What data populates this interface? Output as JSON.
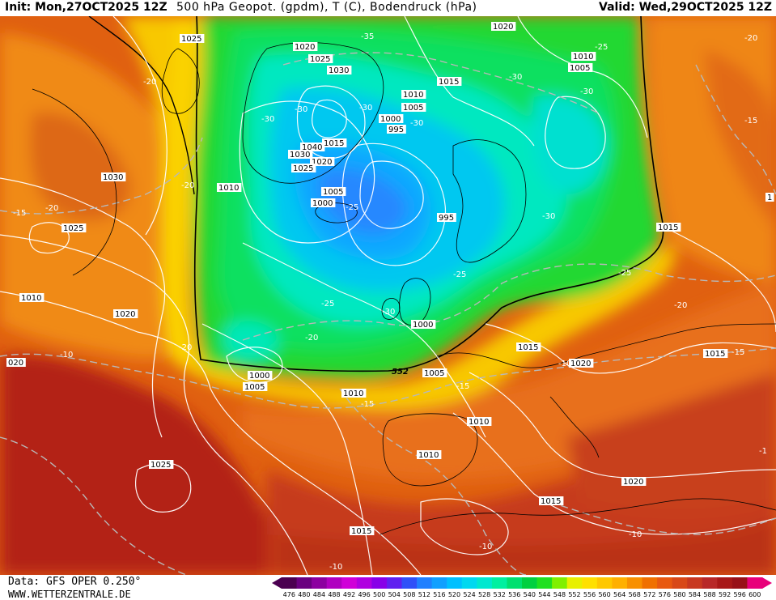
{
  "header": {
    "init": "Init: Mon,27OCT2025 12Z",
    "title": "500 hPa Geopot. (gpdm), T (C), Bodendruck (hPa)",
    "valid": "Valid: Wed,29OCT2025 12Z"
  },
  "footer": {
    "data_source": "Data: GFS OPER 0.250°",
    "website": "WWW.WETTERZENTRALE.DE"
  },
  "colorbar": {
    "ticks": [
      "476",
      "480",
      "484",
      "488",
      "492",
      "496",
      "500",
      "504",
      "508",
      "512",
      "516",
      "520",
      "524",
      "528",
      "532",
      "536",
      "540",
      "544",
      "548",
      "552",
      "556",
      "560",
      "564",
      "568",
      "572",
      "576",
      "580",
      "584",
      "588",
      "592",
      "596",
      "600"
    ],
    "colors": [
      "#4b0050",
      "#6a0080",
      "#8c00a0",
      "#b000c0",
      "#d000d8",
      "#b000e0",
      "#8800e8",
      "#6020f0",
      "#3050f8",
      "#2080ff",
      "#10a0ff",
      "#00c0ff",
      "#00d8f0",
      "#00e8d0",
      "#00f0a0",
      "#00e070",
      "#00d040",
      "#20e020",
      "#80f000",
      "#e8f000",
      "#ffe000",
      "#ffc800",
      "#ffb000",
      "#f89000",
      "#f07000",
      "#e85810",
      "#d84818",
      "#c83820",
      "#b82828",
      "#a81818",
      "#981018",
      "#e8007a"
    ]
  },
  "map": {
    "contour_value_552": "552",
    "pressure_labels": [
      {
        "text": "1025",
        "id": "p1025-greenland-w"
      },
      {
        "text": "1020",
        "id": "p1020-greenland"
      },
      {
        "text": "1025",
        "id": "p1025-greenland-n"
      },
      {
        "text": "1030",
        "id": "p1030-greenland"
      },
      {
        "text": "1020",
        "id": "p1020-north"
      },
      {
        "text": "1010",
        "id": "p1010-ne"
      },
      {
        "text": "1005",
        "id": "p1005-ne"
      },
      {
        "text": "1015",
        "id": "p1015-n"
      },
      {
        "text": "1010",
        "id": "p1010-n"
      },
      {
        "text": "1005",
        "id": "p1005-n"
      },
      {
        "text": "1000",
        "id": "p1000-n"
      },
      {
        "text": "995",
        "id": "p995-n"
      },
      {
        "text": "1040",
        "id": "p1040"
      },
      {
        "text": "1015",
        "id": "p1015-gl"
      },
      {
        "text": "1030",
        "id": "p1030-gl"
      },
      {
        "text": "1020",
        "id": "p1020-gl"
      },
      {
        "text": "1025",
        "id": "p1025-gl"
      },
      {
        "text": "1030",
        "id": "p1030-canada"
      },
      {
        "text": "1010",
        "id": "p1010-atl-n"
      },
      {
        "text": "1005",
        "id": "p1005-iceland"
      },
      {
        "text": "1000",
        "id": "p1000-iceland"
      },
      {
        "text": "995",
        "id": "p995-scand"
      },
      {
        "text": "1025",
        "id": "p1025-newfoundland"
      },
      {
        "text": "1010",
        "id": "p1010-w"
      },
      {
        "text": "1020",
        "id": "p1020-atl"
      },
      {
        "text": "1000",
        "id": "p1000-uk"
      },
      {
        "text": "1000",
        "id": "p1000-atl"
      },
      {
        "text": "1005",
        "id": "p1005-atl"
      },
      {
        "text": "1005",
        "id": "p1005-channel"
      },
      {
        "text": "1010",
        "id": "p1010-biscay"
      },
      {
        "text": "1010",
        "id": "p1010-france"
      },
      {
        "text": "1010",
        "id": "p1010-iberia"
      },
      {
        "text": "1015",
        "id": "p1015-iberia"
      },
      {
        "text": "1015",
        "id": "p1015-med"
      },
      {
        "text": "1020",
        "id": "p1020-balkans"
      },
      {
        "text": "1015",
        "id": "p1015-central"
      },
      {
        "text": "1020",
        "id": "p1020-east"
      },
      {
        "text": "1015",
        "id": "p1015-russia"
      },
      {
        "text": "1015",
        "id": "p1015-east"
      },
      {
        "text": "1025",
        "id": "p1025-azores"
      },
      {
        "text": "020",
        "id": "p020-west-edge"
      },
      {
        "text": "1",
        "id": "p1-edge"
      }
    ],
    "temp_labels": [
      {
        "text": "-35",
        "id": "t-35"
      },
      {
        "text": "-25",
        "id": "t-25-n"
      },
      {
        "text": "-30",
        "id": "t-30-n"
      },
      {
        "text": "-30",
        "id": "t-30-ne"
      },
      {
        "text": "-30",
        "id": "t-30-gl"
      },
      {
        "text": "-30",
        "id": "t-30-gl2"
      },
      {
        "text": "-30",
        "id": "t-30-gl3"
      },
      {
        "text": "-30",
        "id": "t-30-scand"
      },
      {
        "text": "-30",
        "id": "t-30-russ"
      },
      {
        "text": "-25",
        "id": "t-25-ice"
      },
      {
        "text": "-25",
        "id": "t-25-uk"
      },
      {
        "text": "-25",
        "id": "t-25-atl"
      },
      {
        "text": "-25",
        "id": "t-25-e"
      },
      {
        "text": "-30",
        "id": "t-30-uk"
      },
      {
        "text": "-20",
        "id": "t-20-w"
      },
      {
        "text": "-20",
        "id": "t-20-canada"
      },
      {
        "text": "-20",
        "id": "t-20-atl"
      },
      {
        "text": "-20",
        "id": "t-20-atl2"
      },
      {
        "text": "-20",
        "id": "t-20-fr"
      },
      {
        "text": "-20",
        "id": "t-20-ne"
      },
      {
        "text": "-20",
        "id": "t-20-e"
      },
      {
        "text": "-15",
        "id": "t-15-w"
      },
      {
        "text": "-15",
        "id": "t-15-ne"
      },
      {
        "text": "-15",
        "id": "t-15-iberia"
      },
      {
        "text": "-15",
        "id": "t-15-biscay"
      },
      {
        "text": "-15",
        "id": "t-15-e"
      },
      {
        "text": "-10",
        "id": "t-10-atl"
      },
      {
        "text": "-10",
        "id": "t-10-ce"
      },
      {
        "text": "-10",
        "id": "t-10-med"
      },
      {
        "text": "-10",
        "id": "t-10-s"
      },
      {
        "text": "-10",
        "id": "t-10-se"
      },
      {
        "text": "-1",
        "id": "t-1-edge"
      }
    ]
  }
}
